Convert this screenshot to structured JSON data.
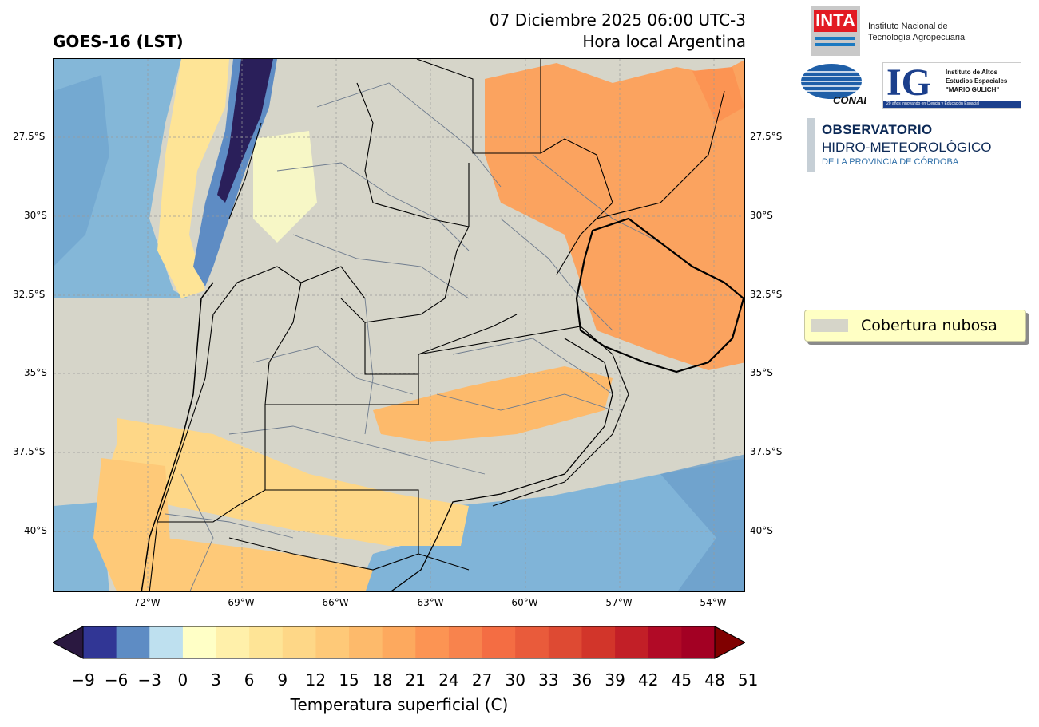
{
  "header": {
    "title_left": "GOES-16 (LST)",
    "date_line": "07 Diciembre 2025 06:00 UTC-3",
    "local_line": "Hora local Argentina"
  },
  "map": {
    "lat_labels": [
      "27.5°S",
      "30°S",
      "32.5°S",
      "35°S",
      "37.5°S",
      "40°S"
    ],
    "lon_labels": [
      "72°W",
      "69°W",
      "66°W",
      "63°W",
      "60°W",
      "57°W",
      "54°W"
    ],
    "background_color": "#d6d5c9"
  },
  "legend": {
    "label": "Cobertura nubosa"
  },
  "logos": {
    "inta_mark": "INTA",
    "inta_line1": "Instituto Nacional de",
    "inta_line2": "Tecnología Agropecuaria",
    "conae": "CONAE",
    "ig_mark": "IG",
    "ig_line1": "Instituto de Altos",
    "ig_line2": "Estudios Espaciales",
    "ig_line3": "\"MARIO GULICH\"",
    "ig_band": "20 años innovando en Ciencia y Educación Espacial",
    "obs_line1": "OBSERVATORIO",
    "obs_line2": "HIDRO-METEOROLÓGICO",
    "obs_line3": "DE LA PROVINCIA DE CÓRDOBA"
  },
  "colorbar": {
    "label": "Temperatura superficial (C)",
    "ticks": [
      "−9",
      "−6",
      "−3",
      "0",
      "3",
      "6",
      "9",
      "12",
      "15",
      "18",
      "21",
      "24",
      "27",
      "30",
      "33",
      "36",
      "39",
      "42",
      "45",
      "48",
      "51"
    ],
    "colors": [
      "#313695",
      "#5e8cc4",
      "#bee0ef",
      "#ffffc6",
      "#fff0aa",
      "#fee496",
      "#fed787",
      "#fec978",
      "#fdba6b",
      "#fda95e",
      "#fc9453",
      "#f8834d",
      "#f46d43",
      "#e95b3b",
      "#de4a33",
      "#d2352a",
      "#c21f27",
      "#b10a26",
      "#a30023"
    ],
    "under_color": "#2a1840",
    "over_color": "#800000"
  }
}
